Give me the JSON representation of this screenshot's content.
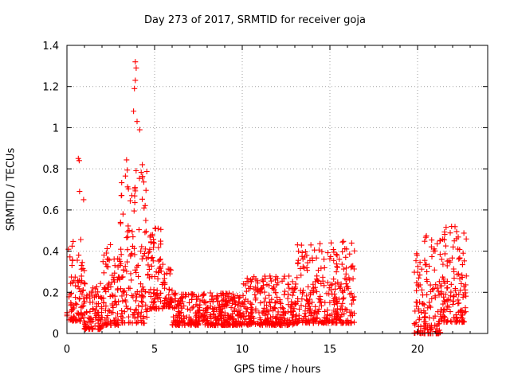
{
  "chart_data": {
    "type": "scatter",
    "title": "Day 273 of 2017, SRMTID for receiver goja",
    "xlabel": "GPS time / hours",
    "ylabel": "SRMTID / TECUs",
    "xlim": [
      0,
      24
    ],
    "ylim": [
      0,
      1.4
    ],
    "xticks": [
      "0",
      "5",
      "10",
      "15",
      "20"
    ],
    "yticks": [
      "0",
      "0.2",
      "0.4",
      "0.6",
      "0.8",
      "1",
      "1.2",
      "1.4"
    ],
    "grid": true,
    "marker": "+",
    "series": [
      {
        "name": "SRMTID",
        "color": "#ff0000",
        "segments": [
          {
            "x_start": 0.0,
            "x_end": 1.0,
            "base": 0.16,
            "spread": 0.2
          },
          {
            "x_start": 1.0,
            "x_end": 2.0,
            "base": 0.08,
            "spread": 0.12
          },
          {
            "x_start": 2.0,
            "x_end": 3.0,
            "base": 0.14,
            "spread": 0.2
          },
          {
            "x_start": 3.0,
            "x_end": 4.6,
            "base": 0.25,
            "spread": 0.4
          },
          {
            "x_start": 4.6,
            "x_end": 5.5,
            "base": 0.22,
            "spread": 0.2
          },
          {
            "x_start": 5.5,
            "x_end": 6.0,
            "base": 0.18,
            "spread": 0.1
          },
          {
            "x_start": 6.0,
            "x_end": 10.0,
            "base": 0.08,
            "spread": 0.08
          },
          {
            "x_start": 10.0,
            "x_end": 13.0,
            "base": 0.1,
            "spread": 0.12
          },
          {
            "x_start": 13.0,
            "x_end": 16.4,
            "base": 0.15,
            "spread": 0.2
          }
        ],
        "segments2": [
          {
            "x_start": 19.8,
            "x_end": 20.4,
            "base": 0.1,
            "spread": 0.2
          },
          {
            "x_start": 20.4,
            "x_end": 21.3,
            "base": 0.12,
            "spread": 0.25
          },
          {
            "x_start": 21.3,
            "x_end": 22.8,
            "base": 0.18,
            "spread": 0.25
          }
        ],
        "peaks": [
          {
            "x": 0.65,
            "y": 0.85
          },
          {
            "x": 0.7,
            "y": 0.84
          },
          {
            "x": 0.72,
            "y": 0.69
          },
          {
            "x": 0.95,
            "y": 0.65
          },
          {
            "x": 3.8,
            "y": 1.08
          },
          {
            "x": 3.85,
            "y": 1.19
          },
          {
            "x": 3.9,
            "y": 1.32
          },
          {
            "x": 3.95,
            "y": 1.29
          },
          {
            "x": 3.9,
            "y": 1.23
          },
          {
            "x": 4.0,
            "y": 1.03
          },
          {
            "x": 4.15,
            "y": 0.99
          },
          {
            "x": 4.3,
            "y": 0.82
          },
          {
            "x": 3.7,
            "y": 0.67
          },
          {
            "x": 4.4,
            "y": 0.61
          },
          {
            "x": 3.1,
            "y": 0.67
          },
          {
            "x": 3.2,
            "y": 0.58
          },
          {
            "x": 5.2,
            "y": 0.51
          },
          {
            "x": 15.9,
            "y": 0.37
          },
          {
            "x": 21.3,
            "y": 0.45
          },
          {
            "x": 22.3,
            "y": 0.41
          },
          {
            "x": 22.6,
            "y": 0.39
          }
        ]
      }
    ]
  }
}
